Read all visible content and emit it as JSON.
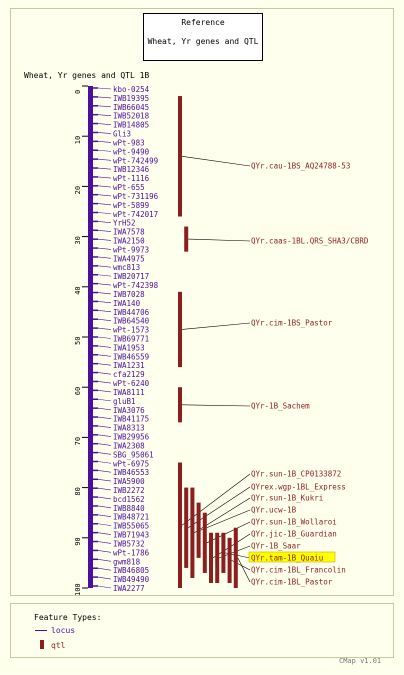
{
  "reference": {
    "title": "Reference",
    "subtitle": "Wheat, Yr genes and QTL"
  },
  "map_title": "Wheat, Yr genes and QTL 1B",
  "axis_ticks": [
    "0",
    "10",
    "20",
    "30",
    "40",
    "50",
    "60",
    "70",
    "80",
    "90",
    "100"
  ],
  "loci": [
    "kbo-0254",
    "IWB19395",
    "IWB66045",
    "IWB52018",
    "IWB14805",
    "Gli3",
    "wPt-983",
    "wPt-9490",
    "wPt-742499",
    "IWB12346",
    "wPt-1116",
    "wPt-655",
    "wPt-731196",
    "wPt-5899",
    "wPt-742017",
    "YrH52",
    "IWA7578",
    "IWA2150",
    "wPt-9973",
    "IWA4975",
    "wmc813",
    "IWB20717",
    "wPt-742398",
    "IWB7028",
    "IWA140",
    "IWB44706",
    "IWB64540",
    "wPt-1573",
    "IWB69771",
    "IWA1953",
    "IWB46559",
    "IWA1231",
    "cfa2129",
    "wPt-6240",
    "IWA8111",
    "gluB1",
    "IWA3076",
    "IWB41175",
    "IWA8313",
    "IWB29956",
    "IWA2308",
    "SBG_95061",
    "wPt-6975",
    "IWB46553",
    "IWA5900",
    "IWB2272",
    "bcd1562",
    "IWB8840",
    "IWB48721",
    "IWB55065",
    "IWB71943",
    "IWB5732",
    "wPt-1786",
    "gwm818",
    "IWB46805",
    "IWB49490",
    "IWA2277"
  ],
  "qtls": [
    {
      "label": "QYr.cau-1BS_AQ24788-53",
      "start": 2,
      "end": 26
    },
    {
      "label": "QYr.caas-1BL.QRS_SHA3/CBRD",
      "start": 28,
      "end": 33
    },
    {
      "label": "QYr.cim-1BS_Pastor",
      "start": 41,
      "end": 56
    },
    {
      "label": "QYr-1B_Sachem",
      "start": 60,
      "end": 67
    },
    {
      "label": "QYr.sun-1B_CP0133872",
      "start": 75,
      "end": 101
    },
    {
      "label": "QYrex.wgp-1BL_Express",
      "start": 80,
      "end": 96
    },
    {
      "label": "QYr.sun-1B_Kukri",
      "start": 80,
      "end": 98
    },
    {
      "label": "QYr.ucw-1B",
      "start": 83,
      "end": 94
    },
    {
      "label": "QYr.sun-1B_Wollaroi",
      "start": 85,
      "end": 97
    },
    {
      "label": "QYr.jic-1B_Guardian",
      "start": 89,
      "end": 99
    },
    {
      "label": "QYr-1B_Saar",
      "start": 89,
      "end": 99
    },
    {
      "label": "QYr.tam-1B_Quaiu",
      "start": 89,
      "end": 97,
      "highlighted": true
    },
    {
      "label": "QYr.cim-1BL_Francolin",
      "start": 90,
      "end": 99
    },
    {
      "label": "QYr.cim-1BL_Pastor",
      "start": 88,
      "end": 101
    }
  ],
  "legend": {
    "title": "Feature Types:",
    "locus_label": "locus",
    "qtl_label": "qtl"
  },
  "version": "CMap v1.01",
  "colors": {
    "locus": "#4a0fa0",
    "qtl": "#8b1f1f",
    "highlight": "#ffff00",
    "label_qtl": "#8b1f1f",
    "axis": "#000000"
  }
}
